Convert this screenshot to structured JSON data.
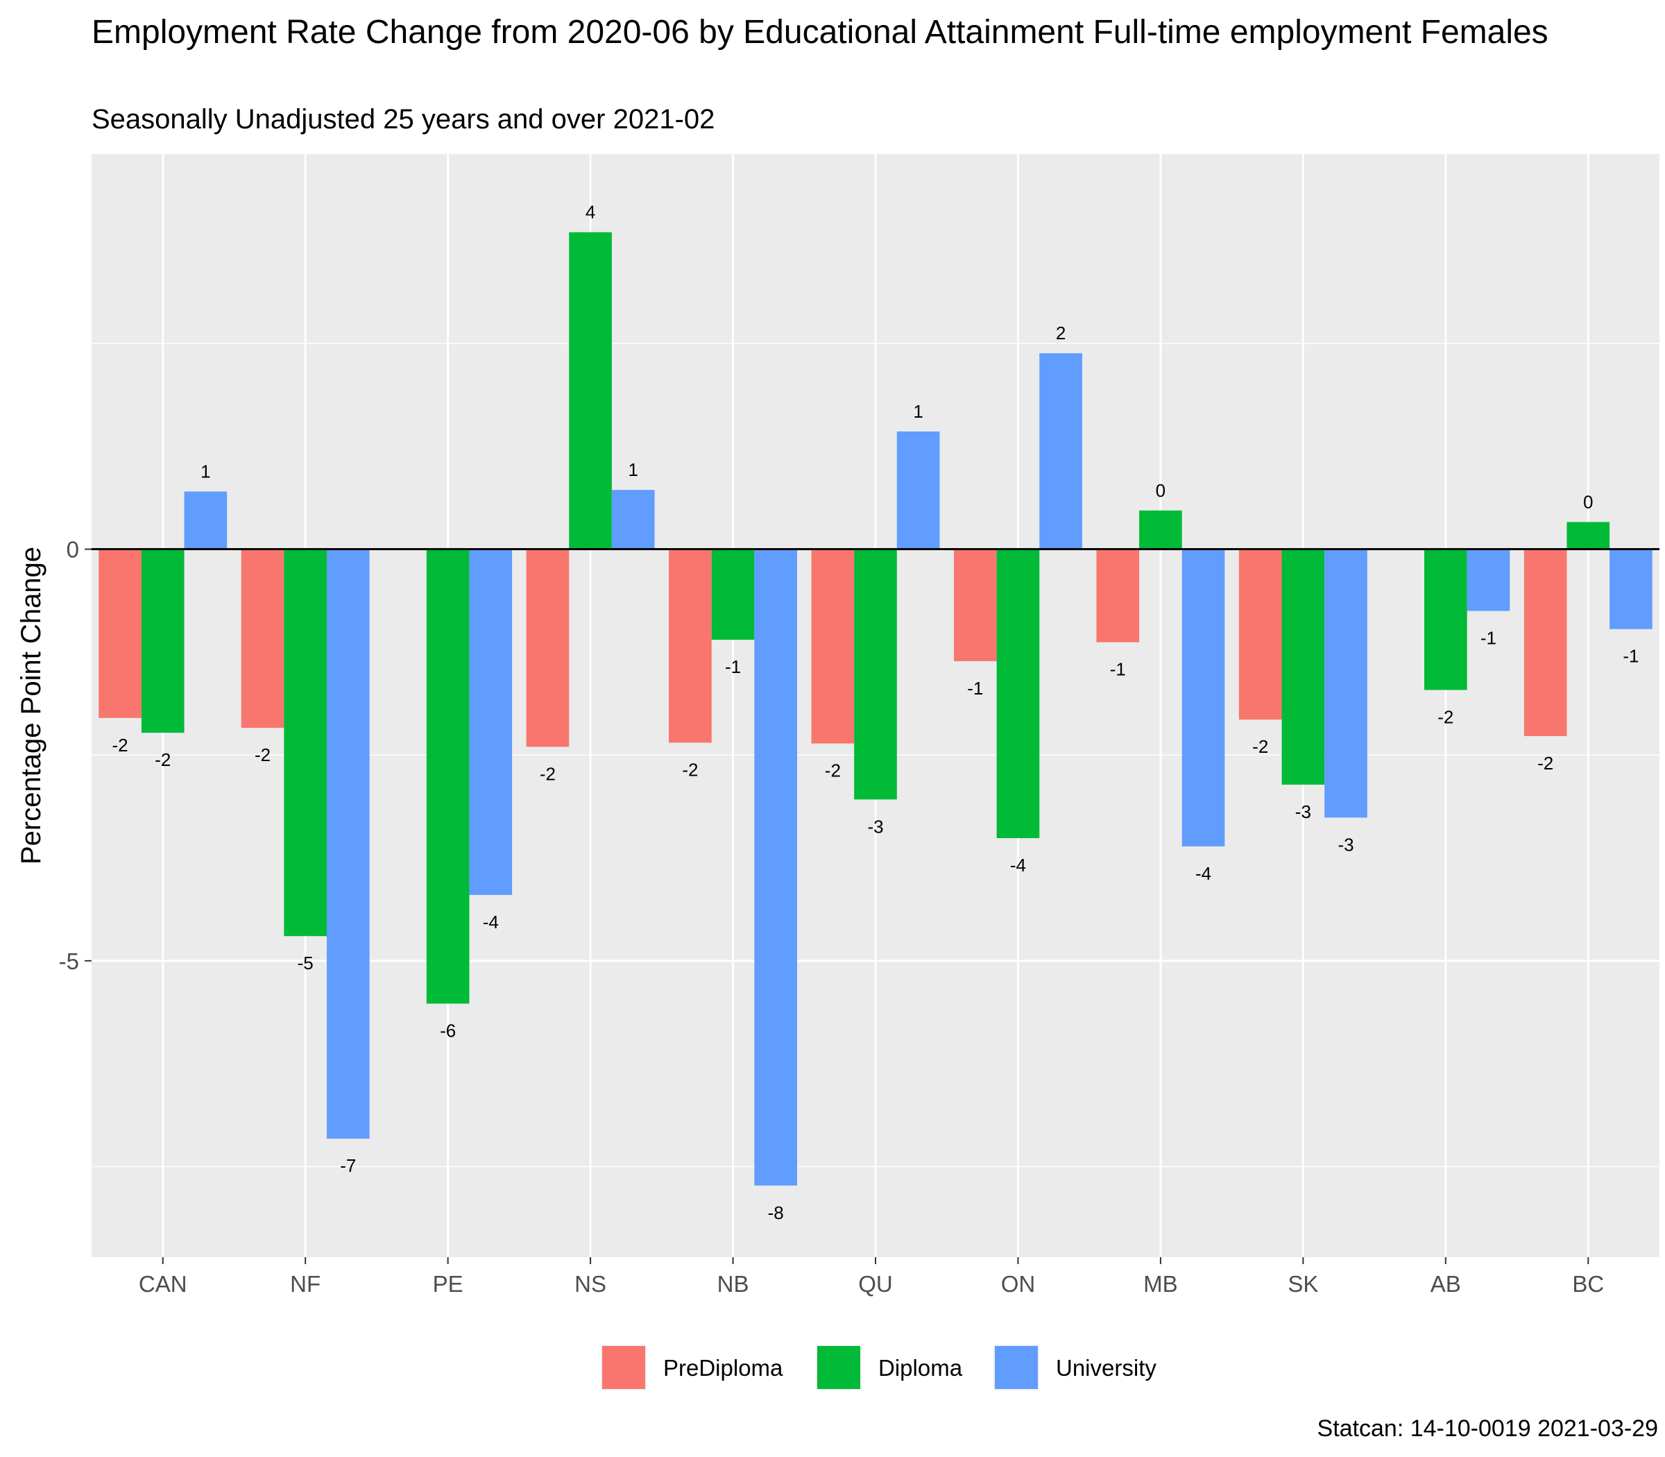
{
  "title": "Employment Rate Change from 2020-06 by Educational Attainment Full-time employment Females",
  "subtitle": "Seasonally Unadjusted 25 years and over 2021-02",
  "caption": "Statcan: 14-10-0019 2021-03-29",
  "chart_data": {
    "type": "bar",
    "ylabel": "Percentage Point Change",
    "xlabel": "",
    "ylim": [
      -8.6,
      4.8
    ],
    "yticks": [
      -5,
      0
    ],
    "grid": true,
    "legend_position": "bottom",
    "categories": [
      "CAN",
      "NF",
      "PE",
      "NS",
      "NB",
      "QU",
      "ON",
      "MB",
      "SK",
      "AB",
      "BC"
    ],
    "series": [
      {
        "name": "PreDiploma",
        "color": "#F8766D",
        "values": [
          -2.05,
          -2.17,
          null,
          -2.4,
          -2.35,
          -2.36,
          -1.36,
          -1.13,
          -2.07,
          null,
          -2.27
        ],
        "labels": [
          "-2",
          "-2",
          null,
          "-2",
          "-2",
          "-2",
          "-1",
          "-1",
          "-2",
          null,
          "-2"
        ]
      },
      {
        "name": "Diploma",
        "color": "#00BA38",
        "values": [
          -2.23,
          -4.7,
          -5.52,
          3.85,
          -1.1,
          -3.04,
          -3.51,
          0.47,
          -2.86,
          -1.71,
          0.33
        ],
        "labels": [
          "-2",
          "-5",
          "-6",
          "4",
          "-1",
          "-3",
          "-4",
          "0",
          "-3",
          "-2",
          "0"
        ]
      },
      {
        "name": "University",
        "color": "#619CFF",
        "values": [
          0.7,
          -7.16,
          -4.2,
          0.72,
          -7.73,
          1.43,
          2.38,
          -3.61,
          -3.26,
          -0.75,
          -0.97
        ],
        "labels": [
          "1",
          "-7",
          "-4",
          "1",
          "-8",
          "1",
          "2",
          "-4",
          "-3",
          "-1",
          "-1"
        ]
      }
    ]
  }
}
